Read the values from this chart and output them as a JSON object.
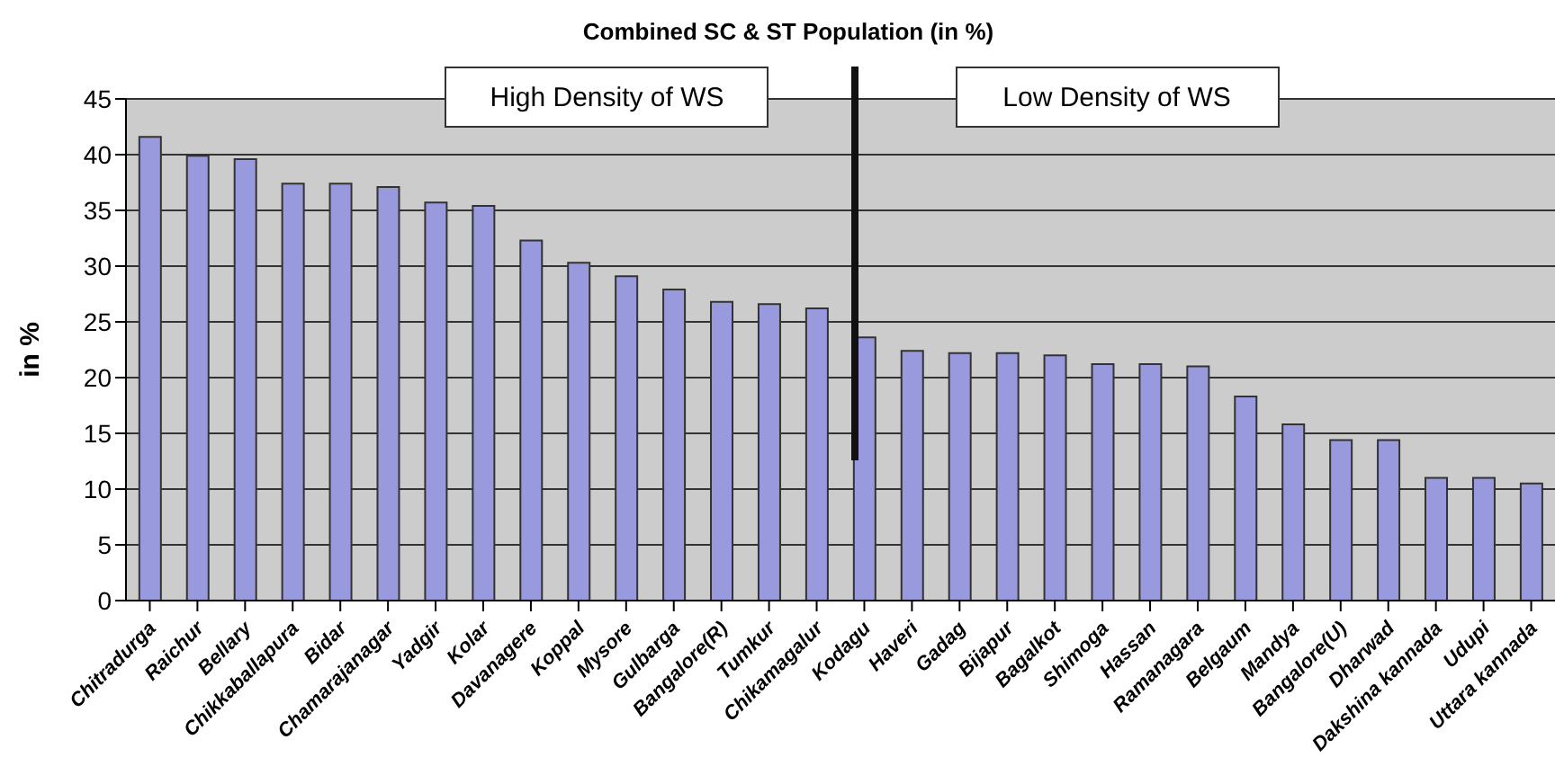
{
  "chart_data": {
    "type": "bar",
    "title": "Combined SC & ST Population (in %)",
    "ylabel": "in %",
    "annotations": [
      "High Density of WS",
      "Low Density of WS"
    ],
    "categories": [
      "Chitradurga",
      "Raichur",
      "Bellary",
      "Chikkaballapura",
      "Bidar",
      "Chamarajanagar",
      "Yadgir",
      "Kolar",
      "Davanagere",
      "Koppal",
      "Mysore",
      "Gulbarga",
      "Bangalore(R)",
      "Tumkur",
      "Chikamagalur",
      "Kodagu",
      "Haveri",
      "Gadag",
      "Bijapur",
      "Bagalkot",
      "Shimoga",
      "Hassan",
      "Ramanagara",
      "Belgaum",
      "Mandya",
      "Bangalore(U)",
      "Dharwad",
      "Dakshina kannada",
      "Udupi",
      "Uttara kannada"
    ],
    "values": [
      41.6,
      39.9,
      39.6,
      37.4,
      37.4,
      37.1,
      35.7,
      35.4,
      32.3,
      30.3,
      29.1,
      27.9,
      26.8,
      26.6,
      26.2,
      23.6,
      22.4,
      22.2,
      22.2,
      22.0,
      21.2,
      21.2,
      21.0,
      18.3,
      15.8,
      14.4,
      14.4,
      11.0,
      11.0,
      10.5
    ],
    "color": "#9999dd",
    "ylim": [
      0,
      45
    ],
    "yticks": [
      0,
      5,
      10,
      15,
      20,
      25,
      30,
      35,
      40,
      45
    ],
    "grid": "y"
  }
}
